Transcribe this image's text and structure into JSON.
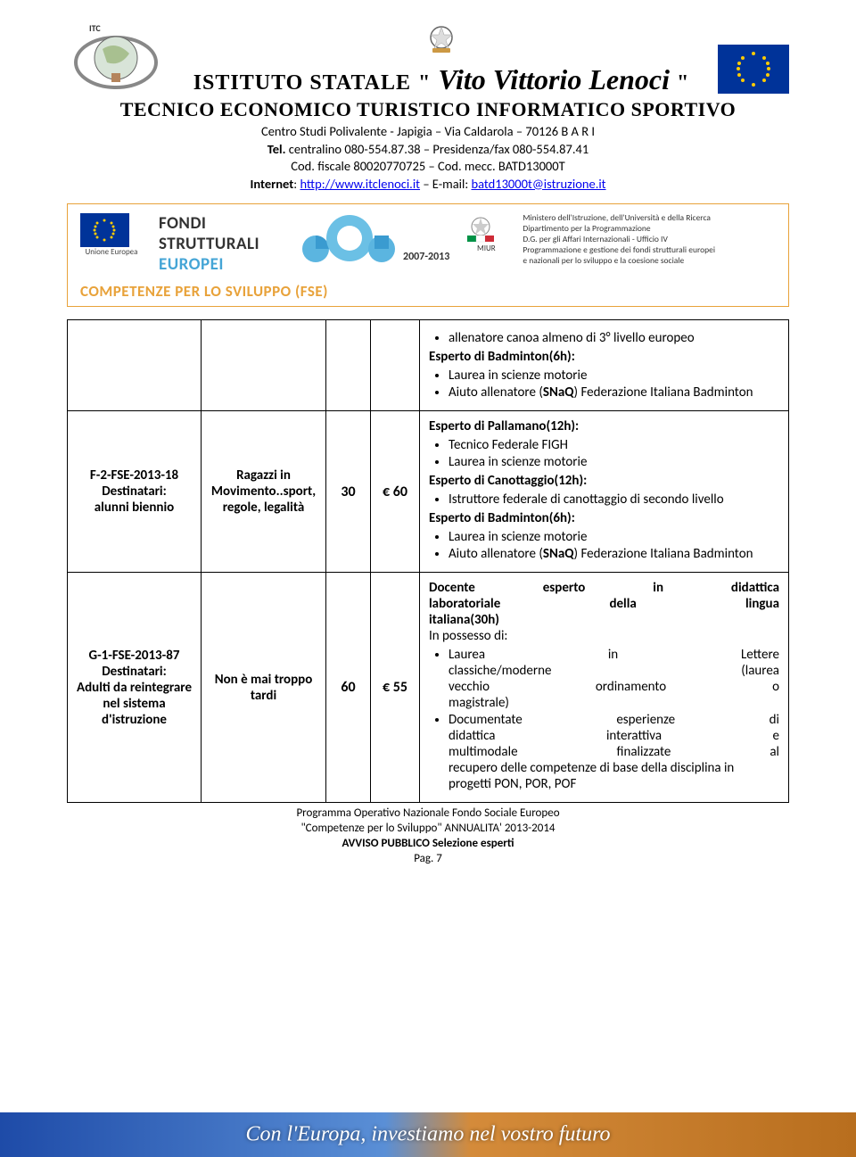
{
  "header": {
    "school_prefix": "ISTITUTO STATALE ",
    "quote_open": "\"",
    "school_name": "Vito Vittorio Lenoci",
    "quote_close": "\"",
    "subtitle": "TECNICO ECONOMICO TURISTICO INFORMATICO SPORTIVO",
    "line1": "Centro Studi Polivalente - Japigia – Via Caldarola – 70126  B A R I",
    "line2_prefix": "Tel.",
    "line2_rest": " centralino 080-554.87.38 – Presidenza/fax 080-554.87.41",
    "line3": "Cod. fiscale 80020770725 – Cod. mecc. BATD13000T",
    "line4_lbl_internet": "Internet",
    "line4_url": "http://www.itclenoci.it",
    "line4_lbl_email": " – E-mail: ",
    "line4_email": "batd13000t@istruzione.it"
  },
  "pon": {
    "eu_label": "Unione Europea",
    "t1": "FONDI",
    "t2": "STRUTTURALI",
    "t3": "EUROPEI",
    "years": "2007-2013",
    "miur": "MIUR",
    "ministry": "Ministero dell'Istruzione, dell'Università e della Ricerca\nDipartimento per la Programmazione\nD.G. per gli Affari Internazionali - Ufficio IV\nProgrammazione e gestione dei fondi strutturali europei\ne nazionali per lo sviluppo e la coesione sociale",
    "competenze": "COMPETENZE PER LO SVILUPPO (FSE)"
  },
  "table": {
    "rows": [
      {
        "desc_html": "<ul><li>allenatore canoa almeno di 3° livello europeo</li></ul><span class='b'>Esperto di Badminton(6h):</span><ul><li>Laurea in scienze motorie</li><li>Aiuto allenatore (<span class='b'>SNaQ</span>) Federazione Italiana Badminton</li></ul>"
      },
      {
        "proj_html": "F-2-FSE-2013-18<br>Destinatari:<br>alunni biennio",
        "title_html": "Ragazzi in Movimento..sport, regole, legalità",
        "hours": "30",
        "eur": "€ 60",
        "desc_html": "<span class='b'>Esperto di Pallamano(12h):</span><ul><li>Tecnico Federale FIGH</li><li>Laurea in scienze motorie</li></ul><span class='b'>Esperto di Canottaggio(12h):</span><ul><li>Istruttore federale di canottaggio di secondo livello</li></ul><span class='b'>Esperto di Badminton(6h):</span><ul><li>Laurea in scienze motorie</li><li>Aiuto allenatore (<span class='b'>SNaQ</span>) Federazione Italiana Badminton</li></ul>"
      },
      {
        "proj_html": "G-1-FSE-2013-87<br>Destinatari:<br>Adulti da reintegrare nel sistema d'istruzione",
        "title_html": "Non è mai troppo tardi",
        "hours": "60",
        "eur": "€ 55",
        "desc_html": "<span class='b' style='display:flex;justify-content:space-between'><span>Docente</span><span>esperto</span><span>in</span><span>didattica</span></span><span class='b' style='display:flex;justify-content:space-between'><span>laboratoriale</span><span>della</span><span>lingua</span></span><span class='b'>italiana(30h)</span><br>In possesso di:<ul><li><span style='display:flex;justify-content:space-between'><span>Laurea</span><span>in</span><span>Lettere</span></span><span style='display:flex;justify-content:space-between'><span>classiche/moderne</span><span>(laurea</span></span><span style='display:flex;justify-content:space-between'><span>vecchio</span><span>ordinamento</span><span>o</span></span>magistrale)</li><li><span style='display:flex;justify-content:space-between'><span>Documentate</span><span>esperienze</span><span>di</span></span><span style='display:flex;justify-content:space-between'><span>didattica</span><span>interattiva</span><span>e</span></span><span style='display:flex;justify-content:space-between'><span>multimodale</span><span>finalizzate</span><span>al</span></span>recupero delle competenze di base della disciplina in progetti PON, POR, POF</li></ul>"
      }
    ]
  },
  "footer": {
    "l1": "Programma Operativo Nazionale   Fondo Sociale Europeo",
    "l2": "\"Competenze per lo Sviluppo\" ANNUALITA' 2013-2014",
    "l3": "AVVISO PUBBLICO Selezione esperti",
    "l4": "Pag. 7"
  },
  "bottom_banner": "Con l'Europa, investiamo nel vostro futuro",
  "colors": {
    "orange": "#e8a23a",
    "blue": "#45a5d6",
    "euflag_bg": "#003399",
    "euflag_star": "#ffcc00",
    "link": "#0000ee"
  }
}
